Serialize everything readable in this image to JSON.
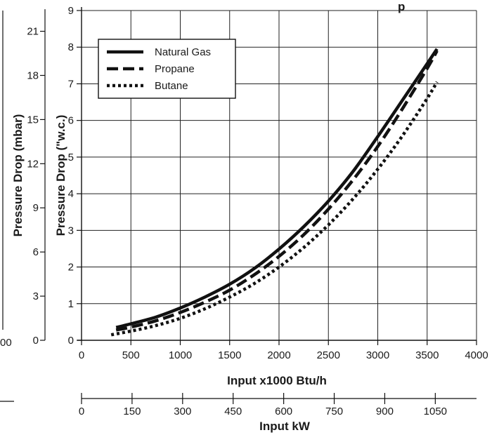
{
  "chart_data": {
    "type": "line",
    "title": "Pressure Drop",
    "title_visible_fragment": "p",
    "x_axis": {
      "label": "Input x1000 Btu/h",
      "range": [
        0,
        4000
      ],
      "ticks": [
        0,
        500,
        1000,
        1500,
        2000,
        2500,
        3000,
        3500,
        4000
      ],
      "tick_labels": [
        "0",
        "500",
        "1000",
        "1500",
        "2000",
        "2500",
        "3000",
        "3500",
        "4000"
      ]
    },
    "x2_axis": {
      "label": "Input kW",
      "ticks": [
        0,
        150,
        300,
        450,
        600,
        750,
        900,
        1050
      ],
      "tick_labels": [
        "0",
        "150",
        "300",
        "450",
        "600",
        "750",
        "900",
        "1050"
      ]
    },
    "y_axis": {
      "label": "Pressure Drop (\"w.c.)",
      "range": [
        0,
        9
      ],
      "ticks": [
        0,
        1,
        2,
        3,
        4,
        5,
        6,
        7,
        8,
        9
      ],
      "tick_labels": [
        "0",
        "1",
        "2",
        "3",
        "4",
        "5",
        "6",
        "7",
        "8",
        "9"
      ]
    },
    "y2_axis": {
      "label": "Pressure Drop (mbar)",
      "ticks": [
        0,
        3,
        6,
        9,
        12,
        15,
        18,
        21
      ],
      "tick_labels": [
        "0",
        "3",
        "6",
        "9",
        "12",
        "15",
        "18",
        "21"
      ]
    },
    "left_partial_tick_label": "00",
    "grid": true,
    "legend_position": "top-left",
    "series": [
      {
        "name": "Natural Gas",
        "style": "solid",
        "x": [
          350,
          500,
          750,
          1000,
          1250,
          1500,
          1750,
          2000,
          2250,
          2500,
          2750,
          3000,
          3250,
          3500,
          3600
        ],
        "y": [
          0.35,
          0.45,
          0.63,
          0.88,
          1.18,
          1.53,
          1.96,
          2.49,
          3.1,
          3.8,
          4.61,
          5.56,
          6.55,
          7.55,
          7.95
        ]
      },
      {
        "name": "Propane",
        "style": "dashed",
        "x": [
          350,
          500,
          750,
          1000,
          1250,
          1500,
          1750,
          2000,
          2250,
          2500,
          2750,
          3000,
          3250,
          3500,
          3600
        ],
        "y": [
          0.28,
          0.36,
          0.53,
          0.76,
          1.04,
          1.37,
          1.79,
          2.29,
          2.88,
          3.58,
          4.38,
          5.29,
          6.32,
          7.42,
          7.9
        ]
      },
      {
        "name": "Butane",
        "style": "dotted",
        "x": [
          300,
          500,
          750,
          1000,
          1250,
          1500,
          1750,
          2000,
          2250,
          2500,
          2750,
          3000,
          3250,
          3500,
          3600
        ],
        "y": [
          0.15,
          0.25,
          0.4,
          0.6,
          0.86,
          1.18,
          1.55,
          2.0,
          2.53,
          3.15,
          3.86,
          4.67,
          5.58,
          6.6,
          7.05
        ]
      }
    ]
  }
}
